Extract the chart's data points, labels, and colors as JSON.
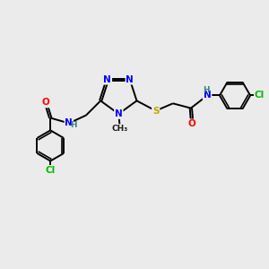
{
  "bg": "#ebebeb",
  "atom_colors": {
    "N": "#0000ff",
    "O": "#ff0000",
    "S": "#bbaa00",
    "Cl": "#00bb00",
    "H_label": "#3a8080",
    "C": "#1a1a1a"
  },
  "lw": 1.4,
  "double_sep": 0.04,
  "font": 7.5,
  "figsize": [
    3.0,
    3.0
  ],
  "dpi": 100,
  "xlim": [
    0,
    10
  ],
  "ylim": [
    0,
    10
  ]
}
